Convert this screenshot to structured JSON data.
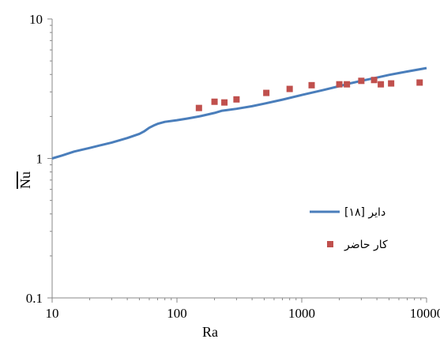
{
  "chart_data": {
    "type": "line",
    "xlabel": "Ra",
    "ylabel": "Nu",
    "x_scale": "log",
    "y_scale": "log",
    "xlim": [
      10,
      10000
    ],
    "ylim": [
      0.1,
      10
    ],
    "x_ticks": [
      "10",
      "100",
      "1000",
      "10000"
    ],
    "y_ticks": [
      "0.1",
      "1",
      "10"
    ],
    "grid": false,
    "legend_position": "right",
    "series": [
      {
        "name": "دایر [۱۸]",
        "kind": "line",
        "color": "#4a7ebb",
        "x": [
          10,
          12,
          15,
          20,
          25,
          30,
          40,
          50,
          55,
          60,
          65,
          70,
          80,
          100,
          120,
          150,
          200,
          230,
          250,
          300,
          400,
          500,
          700,
          1000,
          1500,
          2000,
          2500,
          3000,
          4000,
          5000,
          7000,
          10000
        ],
        "y": [
          1.0,
          1.05,
          1.12,
          1.19,
          1.25,
          1.3,
          1.4,
          1.5,
          1.57,
          1.66,
          1.72,
          1.77,
          1.83,
          1.88,
          1.93,
          2.0,
          2.12,
          2.2,
          2.22,
          2.27,
          2.37,
          2.47,
          2.64,
          2.85,
          3.1,
          3.3,
          3.47,
          3.6,
          3.8,
          3.97,
          4.2,
          4.45
        ]
      },
      {
        "name": "کار حاضر",
        "kind": "scatter",
        "color": "#c0504d",
        "x": [
          150,
          200,
          240,
          300,
          520,
          800,
          1200,
          2000,
          2300,
          3000,
          3800,
          4300,
          5200,
          8800
        ],
        "y": [
          2.3,
          2.55,
          2.52,
          2.65,
          2.95,
          3.15,
          3.35,
          3.4,
          3.4,
          3.6,
          3.65,
          3.4,
          3.45,
          3.5
        ]
      }
    ]
  }
}
